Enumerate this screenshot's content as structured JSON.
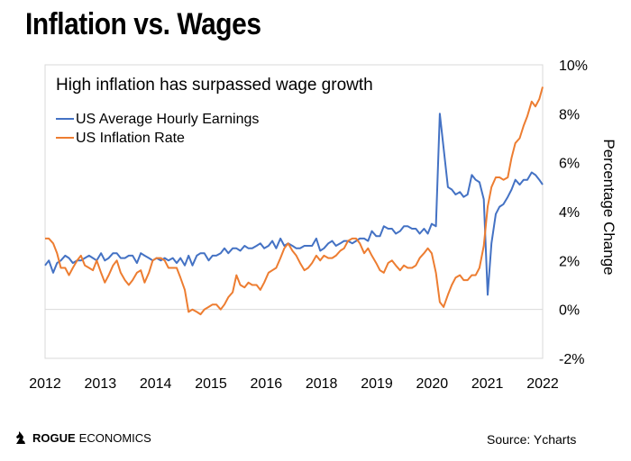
{
  "header": {
    "title": "Inflation vs. Wages"
  },
  "brand": {
    "name_bold": "ROGUE",
    "name_rest": " ECONOMICS",
    "icon": "knight-chess-icon"
  },
  "source": "Source: Ycharts",
  "colors": {
    "wages": "#4472C4",
    "inflation": "#ED7D31",
    "zero_line": "#d9d9d9",
    "frame": "#d9d9d9"
  },
  "chart_data": {
    "type": "line",
    "annotation": "High inflation has surpassed wage growth",
    "xlabel": "",
    "ylabel": "Percentage Change",
    "x_tick_labels": [
      "2012",
      "2013",
      "2014",
      "2015",
      "2016",
      "2018",
      "2019",
      "2020",
      "2021",
      "2022"
    ],
    "y_tick_labels": [
      "10%",
      "8%",
      "6%",
      "4%",
      "2%",
      "0%",
      "-2%"
    ],
    "xlim": [
      2012.0,
      2022.4
    ],
    "ylim": [
      -2,
      10
    ],
    "grid": false,
    "legend_position": "top-left",
    "series": [
      {
        "name": "US Average Hourly Earnings",
        "color": "#4472C4",
        "points": [
          [
            2012.0,
            1.8
          ],
          [
            2012.08,
            2.0
          ],
          [
            2012.17,
            1.5
          ],
          [
            2012.25,
            1.9
          ],
          [
            2012.33,
            2.0
          ],
          [
            2012.42,
            2.2
          ],
          [
            2012.5,
            2.1
          ],
          [
            2012.58,
            1.9
          ],
          [
            2012.67,
            2.0
          ],
          [
            2012.75,
            2.0
          ],
          [
            2012.83,
            2.1
          ],
          [
            2012.92,
            2.2
          ],
          [
            2013.0,
            2.1
          ],
          [
            2013.08,
            2.0
          ],
          [
            2013.17,
            2.3
          ],
          [
            2013.25,
            2.0
          ],
          [
            2013.33,
            2.1
          ],
          [
            2013.42,
            2.3
          ],
          [
            2013.5,
            2.3
          ],
          [
            2013.58,
            2.1
          ],
          [
            2013.67,
            2.1
          ],
          [
            2013.75,
            2.2
          ],
          [
            2013.83,
            2.2
          ],
          [
            2013.92,
            1.9
          ],
          [
            2014.0,
            2.3
          ],
          [
            2014.08,
            2.2
          ],
          [
            2014.17,
            2.1
          ],
          [
            2014.25,
            2.0
          ],
          [
            2014.33,
            2.1
          ],
          [
            2014.42,
            2.0
          ],
          [
            2014.5,
            2.1
          ],
          [
            2014.58,
            2.0
          ],
          [
            2014.67,
            2.1
          ],
          [
            2014.75,
            1.9
          ],
          [
            2014.83,
            2.1
          ],
          [
            2014.92,
            1.8
          ],
          [
            2015.0,
            2.2
          ],
          [
            2015.08,
            1.8
          ],
          [
            2015.17,
            2.2
          ],
          [
            2015.25,
            2.3
          ],
          [
            2015.33,
            2.3
          ],
          [
            2015.42,
            2.0
          ],
          [
            2015.5,
            2.2
          ],
          [
            2015.58,
            2.2
          ],
          [
            2015.67,
            2.3
          ],
          [
            2015.75,
            2.5
          ],
          [
            2015.83,
            2.3
          ],
          [
            2015.92,
            2.5
          ],
          [
            2016.0,
            2.5
          ],
          [
            2016.08,
            2.4
          ],
          [
            2016.17,
            2.6
          ],
          [
            2016.25,
            2.5
          ],
          [
            2016.33,
            2.5
          ],
          [
            2016.42,
            2.6
          ],
          [
            2016.5,
            2.7
          ],
          [
            2016.58,
            2.5
          ],
          [
            2016.67,
            2.6
          ],
          [
            2016.75,
            2.8
          ],
          [
            2016.83,
            2.5
          ],
          [
            2016.92,
            2.9
          ],
          [
            2017.0,
            2.6
          ],
          [
            2017.08,
            2.7
          ],
          [
            2017.17,
            2.6
          ],
          [
            2017.25,
            2.5
          ],
          [
            2017.33,
            2.5
          ],
          [
            2017.42,
            2.6
          ],
          [
            2017.5,
            2.6
          ],
          [
            2017.58,
            2.6
          ],
          [
            2017.67,
            2.9
          ],
          [
            2017.75,
            2.4
          ],
          [
            2017.83,
            2.5
          ],
          [
            2017.92,
            2.7
          ],
          [
            2018.0,
            2.8
          ],
          [
            2018.08,
            2.6
          ],
          [
            2018.17,
            2.7
          ],
          [
            2018.25,
            2.8
          ],
          [
            2018.33,
            2.8
          ],
          [
            2018.42,
            2.7
          ],
          [
            2018.5,
            2.8
          ],
          [
            2018.58,
            2.9
          ],
          [
            2018.67,
            2.9
          ],
          [
            2018.75,
            2.8
          ],
          [
            2018.83,
            3.2
          ],
          [
            2018.92,
            3.0
          ],
          [
            2019.0,
            3.0
          ],
          [
            2019.08,
            3.4
          ],
          [
            2019.17,
            3.3
          ],
          [
            2019.25,
            3.3
          ],
          [
            2019.33,
            3.1
          ],
          [
            2019.42,
            3.2
          ],
          [
            2019.5,
            3.4
          ],
          [
            2019.58,
            3.4
          ],
          [
            2019.67,
            3.3
          ],
          [
            2019.75,
            3.3
          ],
          [
            2019.83,
            3.1
          ],
          [
            2019.92,
            3.3
          ],
          [
            2020.0,
            3.1
          ],
          [
            2020.08,
            3.5
          ],
          [
            2020.17,
            3.4
          ],
          [
            2020.25,
            8.0
          ],
          [
            2020.33,
            6.6
          ],
          [
            2020.42,
            5.0
          ],
          [
            2020.5,
            4.9
          ],
          [
            2020.58,
            4.7
          ],
          [
            2020.67,
            4.8
          ],
          [
            2020.75,
            4.6
          ],
          [
            2020.83,
            4.7
          ],
          [
            2020.92,
            5.5
          ],
          [
            2021.0,
            5.3
          ],
          [
            2021.08,
            5.2
          ],
          [
            2021.17,
            4.5
          ],
          [
            2021.25,
            0.6
          ],
          [
            2021.33,
            2.7
          ],
          [
            2021.42,
            3.9
          ],
          [
            2021.5,
            4.2
          ],
          [
            2021.58,
            4.3
          ],
          [
            2021.67,
            4.6
          ],
          [
            2021.75,
            4.9
          ],
          [
            2021.83,
            5.3
          ],
          [
            2021.92,
            5.1
          ],
          [
            2022.0,
            5.3
          ],
          [
            2022.08,
            5.3
          ],
          [
            2022.17,
            5.6
          ],
          [
            2022.25,
            5.5
          ],
          [
            2022.33,
            5.3
          ],
          [
            2022.4,
            5.1
          ]
        ]
      },
      {
        "name": "US Inflation Rate",
        "color": "#ED7D31",
        "points": [
          [
            2012.0,
            2.9
          ],
          [
            2012.08,
            2.9
          ],
          [
            2012.17,
            2.7
          ],
          [
            2012.25,
            2.3
          ],
          [
            2012.33,
            1.7
          ],
          [
            2012.42,
            1.7
          ],
          [
            2012.5,
            1.4
          ],
          [
            2012.58,
            1.7
          ],
          [
            2012.67,
            2.0
          ],
          [
            2012.75,
            2.2
          ],
          [
            2012.83,
            1.8
          ],
          [
            2012.92,
            1.7
          ],
          [
            2013.0,
            1.6
          ],
          [
            2013.08,
            2.0
          ],
          [
            2013.17,
            1.5
          ],
          [
            2013.25,
            1.1
          ],
          [
            2013.33,
            1.4
          ],
          [
            2013.42,
            1.8
          ],
          [
            2013.5,
            2.0
          ],
          [
            2013.58,
            1.5
          ],
          [
            2013.67,
            1.2
          ],
          [
            2013.75,
            1.0
          ],
          [
            2013.83,
            1.2
          ],
          [
            2013.92,
            1.5
          ],
          [
            2014.0,
            1.6
          ],
          [
            2014.08,
            1.1
          ],
          [
            2014.17,
            1.5
          ],
          [
            2014.25,
            2.0
          ],
          [
            2014.33,
            2.1
          ],
          [
            2014.42,
            2.1
          ],
          [
            2014.5,
            2.0
          ],
          [
            2014.58,
            1.7
          ],
          [
            2014.67,
            1.7
          ],
          [
            2014.75,
            1.7
          ],
          [
            2014.83,
            1.3
          ],
          [
            2014.92,
            0.8
          ],
          [
            2015.0,
            -0.1
          ],
          [
            2015.08,
            0.0
          ],
          [
            2015.17,
            -0.1
          ],
          [
            2015.25,
            -0.2
          ],
          [
            2015.33,
            0.0
          ],
          [
            2015.42,
            0.1
          ],
          [
            2015.5,
            0.2
          ],
          [
            2015.58,
            0.2
          ],
          [
            2015.67,
            0.0
          ],
          [
            2015.75,
            0.2
          ],
          [
            2015.83,
            0.5
          ],
          [
            2015.92,
            0.7
          ],
          [
            2016.0,
            1.4
          ],
          [
            2016.08,
            1.0
          ],
          [
            2016.17,
            0.9
          ],
          [
            2016.25,
            1.1
          ],
          [
            2016.33,
            1.0
          ],
          [
            2016.42,
            1.0
          ],
          [
            2016.5,
            0.8
          ],
          [
            2016.58,
            1.1
          ],
          [
            2016.67,
            1.5
          ],
          [
            2016.75,
            1.6
          ],
          [
            2016.83,
            1.7
          ],
          [
            2016.92,
            2.1
          ],
          [
            2017.0,
            2.5
          ],
          [
            2017.08,
            2.7
          ],
          [
            2017.17,
            2.4
          ],
          [
            2017.25,
            2.2
          ],
          [
            2017.33,
            1.9
          ],
          [
            2017.42,
            1.6
          ],
          [
            2017.5,
            1.7
          ],
          [
            2017.58,
            1.9
          ],
          [
            2017.67,
            2.2
          ],
          [
            2017.75,
            2.0
          ],
          [
            2017.83,
            2.2
          ],
          [
            2017.92,
            2.1
          ],
          [
            2018.0,
            2.1
          ],
          [
            2018.08,
            2.2
          ],
          [
            2018.17,
            2.4
          ],
          [
            2018.25,
            2.5
          ],
          [
            2018.33,
            2.8
          ],
          [
            2018.42,
            2.9
          ],
          [
            2018.5,
            2.9
          ],
          [
            2018.58,
            2.7
          ],
          [
            2018.67,
            2.3
          ],
          [
            2018.75,
            2.5
          ],
          [
            2018.83,
            2.2
          ],
          [
            2018.92,
            1.9
          ],
          [
            2019.0,
            1.6
          ],
          [
            2019.08,
            1.5
          ],
          [
            2019.17,
            1.9
          ],
          [
            2019.25,
            2.0
          ],
          [
            2019.33,
            1.8
          ],
          [
            2019.42,
            1.6
          ],
          [
            2019.5,
            1.8
          ],
          [
            2019.58,
            1.7
          ],
          [
            2019.67,
            1.7
          ],
          [
            2019.75,
            1.8
          ],
          [
            2019.83,
            2.1
          ],
          [
            2019.92,
            2.3
          ],
          [
            2020.0,
            2.5
          ],
          [
            2020.08,
            2.3
          ],
          [
            2020.17,
            1.5
          ],
          [
            2020.25,
            0.3
          ],
          [
            2020.33,
            0.1
          ],
          [
            2020.42,
            0.6
          ],
          [
            2020.5,
            1.0
          ],
          [
            2020.58,
            1.3
          ],
          [
            2020.67,
            1.4
          ],
          [
            2020.75,
            1.2
          ],
          [
            2020.83,
            1.2
          ],
          [
            2020.92,
            1.4
          ],
          [
            2021.0,
            1.4
          ],
          [
            2021.08,
            1.7
          ],
          [
            2021.17,
            2.6
          ],
          [
            2021.25,
            4.2
          ],
          [
            2021.33,
            5.0
          ],
          [
            2021.42,
            5.4
          ],
          [
            2021.5,
            5.4
          ],
          [
            2021.58,
            5.3
          ],
          [
            2021.67,
            5.4
          ],
          [
            2021.75,
            6.2
          ],
          [
            2021.83,
            6.8
          ],
          [
            2021.92,
            7.0
          ],
          [
            2022.0,
            7.5
          ],
          [
            2022.08,
            7.9
          ],
          [
            2022.17,
            8.5
          ],
          [
            2022.25,
            8.3
          ],
          [
            2022.33,
            8.6
          ],
          [
            2022.4,
            9.1
          ]
        ]
      }
    ]
  }
}
